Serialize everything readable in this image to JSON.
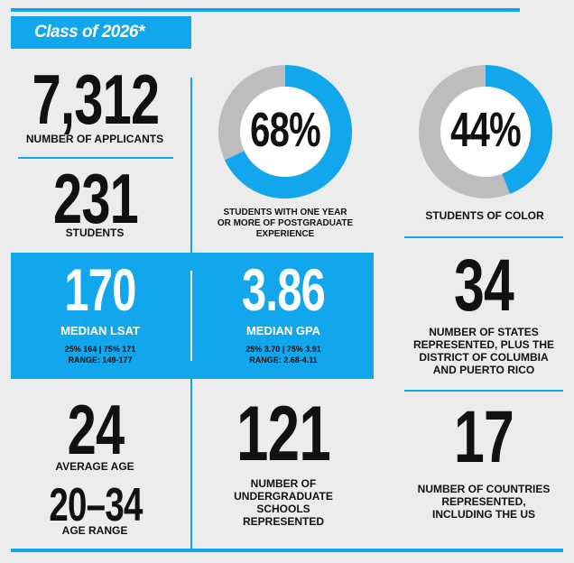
{
  "header": {
    "title": "Class of 2026*"
  },
  "applicants": {
    "value": "7,312",
    "label": "NUMBER OF APPLICANTS"
  },
  "students": {
    "value": "231",
    "label": "STUDENTS"
  },
  "postgrad": {
    "value": "68%",
    "percent": 68,
    "label_line1": "STUDENTS WITH ONE YEAR",
    "label_line2": "OR MORE OF POSTGRADUATE",
    "label_line3": "EXPERIENCE"
  },
  "color": {
    "value": "44%",
    "percent": 44,
    "label": "STUDENTS OF COLOR"
  },
  "lsat": {
    "value": "170",
    "label": "MEDIAN LSAT",
    "detail1": "25% 164 | 75% 171",
    "detail2": "RANGE: 149-177"
  },
  "gpa": {
    "value": "3.86",
    "label": "MEDIAN GPA",
    "detail1": "25% 3.70 | 75% 3.91",
    "detail2": "RANGE: 2.68-4.11"
  },
  "states": {
    "value": "34",
    "label_line1": "NUMBER OF STATES",
    "label_line2": "REPRESENTED, PLUS THE",
    "label_line3": "DISTRICT OF COLUMBIA",
    "label_line4": "AND PUERTO RICO"
  },
  "age": {
    "value": "24",
    "label": "AVERAGE AGE",
    "range_value": "20–34",
    "range_label": "AGE RANGE"
  },
  "schools": {
    "value": "121",
    "label_line1": "NUMBER OF",
    "label_line2": "UNDERGRADUATE",
    "label_line3": "SCHOOLS",
    "label_line4": "REPRESENTED"
  },
  "countries": {
    "value": "17",
    "label_line1": "NUMBER OF COUNTRIES",
    "label_line2": "REPRESENTED,",
    "label_line3": "INCLUDING THE US"
  },
  "colors": {
    "accent": "#12a7ec",
    "ring_gray": "#bdbdbd",
    "background": "#ececec"
  }
}
